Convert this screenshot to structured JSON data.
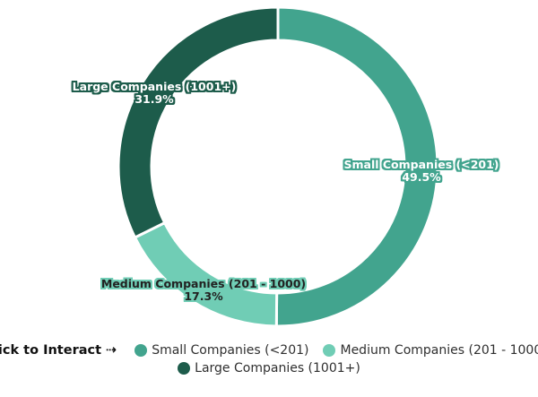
{
  "chart_data": {
    "type": "pie",
    "subtype": "donut",
    "title": "",
    "hole_ratio": 0.79,
    "direction": "clockwise",
    "start_angle_deg": 0,
    "categories": [
      "Small Companies (<201)",
      "Medium Companies (201 - 1000)",
      "Large Companies (1001+)"
    ],
    "values": [
      49.5,
      17.3,
      31.9
    ],
    "slices": [
      {
        "label": "Small Companies (<201)",
        "pct_label": "49.5%",
        "value": 49.5,
        "color": "#42a48e",
        "text_color": "#ffffff"
      },
      {
        "label": "Medium Companies (201 - 1000)",
        "pct_label": "17.3%",
        "value": 17.3,
        "color": "#70cdb5",
        "text_color": "#222222"
      },
      {
        "label": "Large Companies (1001+)",
        "pct_label": "31.9%",
        "value": 31.9,
        "color": "#1d5c4b",
        "text_color": "#ffffff"
      }
    ],
    "legend_position": "bottom"
  },
  "legend": {
    "prompt": "Click to Interact",
    "arrow": "⇢"
  }
}
